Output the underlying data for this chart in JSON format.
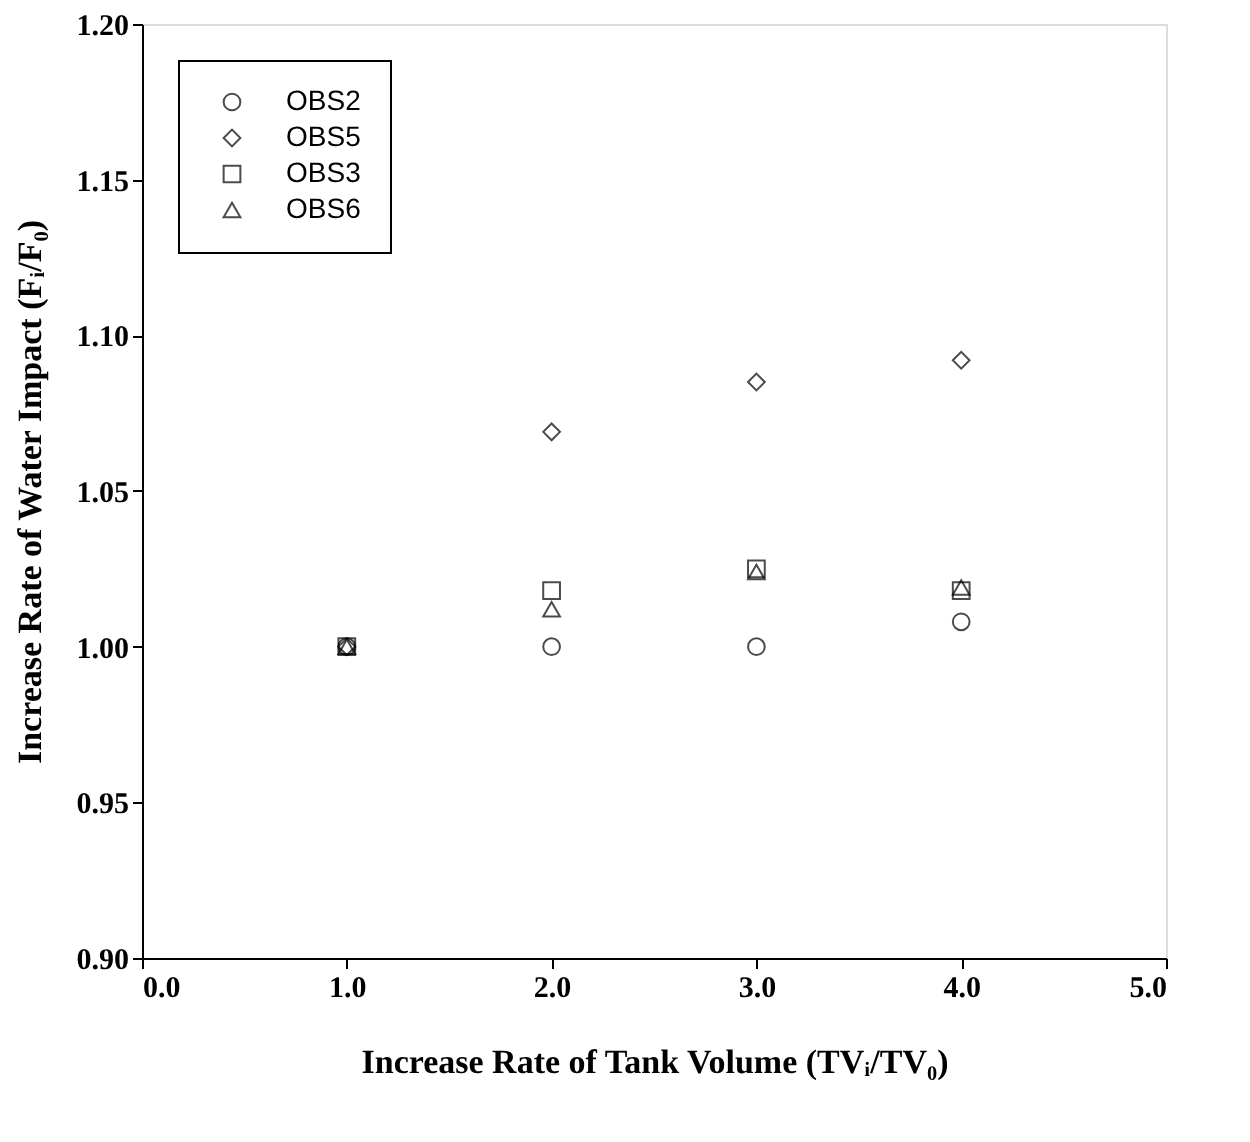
{
  "chart_data": {
    "type": "scatter",
    "xlabel": "Increase Rate of Tank Volume (TVᵢ/TV₀)",
    "ylabel": "Increase Rate of Water Impact (Fᵢ/F₀)",
    "x": [
      1.0,
      2.0,
      3.0,
      4.0
    ],
    "series": [
      {
        "name": "OBS2",
        "color": "#000000",
        "marker": "circle",
        "values": [
          1.0,
          1.0,
          1.0,
          1.008
        ]
      },
      {
        "name": "OBS5",
        "color": "#000000",
        "marker": "diamond",
        "values": [
          1.0,
          1.069,
          1.085,
          1.092
        ]
      },
      {
        "name": "OBS3",
        "color": "#000000",
        "marker": "square",
        "values": [
          1.0,
          1.018,
          1.025,
          1.018
        ]
      },
      {
        "name": "OBS6",
        "color": "#000000",
        "marker": "triangle",
        "values": [
          1.0,
          1.012,
          1.024,
          1.019
        ]
      }
    ],
    "xlim": [
      0.0,
      5.0
    ],
    "xticks": [
      {
        "value": 0,
        "label": "0.0"
      },
      {
        "value": 1,
        "label": "1.0"
      },
      {
        "value": 2,
        "label": "2.0"
      },
      {
        "value": 3,
        "label": "3.0"
      },
      {
        "value": 4,
        "label": "4.0"
      },
      {
        "value": 5,
        "label": "5.0"
      }
    ],
    "ylim": [
      0.9,
      1.2
    ],
    "yticks": [
      {
        "value": 0.9,
        "label": "0.90"
      },
      {
        "value": 0.95,
        "label": "0.95"
      },
      {
        "value": 1.0,
        "label": "1.00"
      },
      {
        "value": 1.05,
        "label": "1.05"
      },
      {
        "value": 1.1,
        "label": "1.10"
      },
      {
        "value": 1.15,
        "label": "1.15"
      },
      {
        "value": 1.2,
        "label": "1.20"
      }
    ],
    "grid": false,
    "legend": "top left"
  }
}
